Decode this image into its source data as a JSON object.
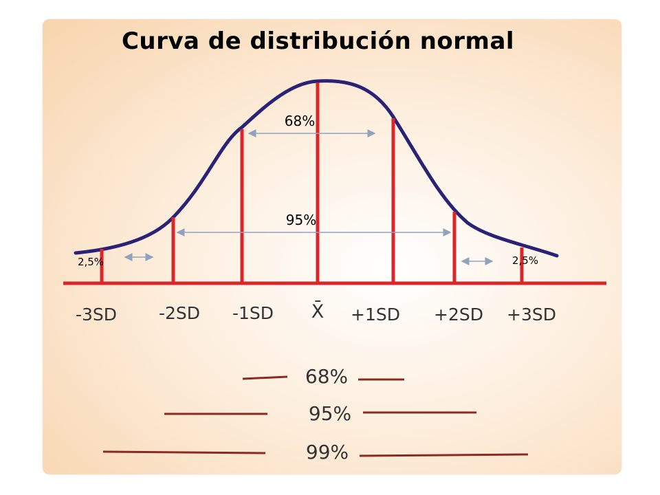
{
  "title": "Curva de distribución normal",
  "colors": {
    "curve": "#2a2276",
    "lines": "#d9262b",
    "arrows": "#8fa3bf",
    "legend_lines": "#8a2a20"
  },
  "axis_labels": [
    "-3SD",
    "-2SD",
    "-1SD",
    "X̄",
    "+1SD",
    "+2SD",
    "+3SD"
  ],
  "percent_labels": {
    "inner": "68%",
    "middle": "95%",
    "left_tail": "2,5%",
    "right_tail": "2,5%"
  },
  "legend": [
    {
      "label": "68%"
    },
    {
      "label": "95%"
    },
    {
      "label": "99%"
    }
  ]
}
